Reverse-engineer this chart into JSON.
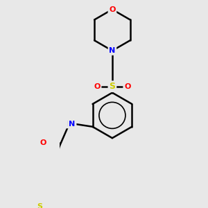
{
  "background_color": "#e8e8e8",
  "bond_color": "#000000",
  "atom_colors": {
    "O": "#ff0000",
    "N": "#0000ff",
    "S_sulfonyl": "#cccc00",
    "S_thiophene": "#cccc00",
    "H": "#808080",
    "C": "#000000"
  },
  "figsize": [
    3.0,
    3.0
  ],
  "dpi": 100
}
